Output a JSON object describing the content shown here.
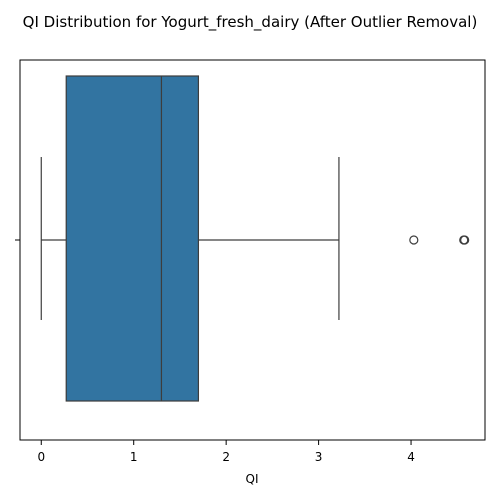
{
  "chart_data": {
    "type": "box",
    "title": "QI Distribution for Yogurt_fresh_dairy (After Outlier Removal)",
    "xlabel": "QI",
    "ylabel": "",
    "orientation": "horizontal",
    "xlim": [
      -0.23,
      4.8
    ],
    "xticks": [
      0,
      1,
      2,
      3,
      4
    ],
    "xtick_labels": [
      "0",
      "1",
      "2",
      "3",
      "4"
    ],
    "grid": false,
    "box": {
      "whisker_low": 0.0,
      "q1": 0.27,
      "median": 1.3,
      "q3": 1.7,
      "whisker_high": 3.22
    },
    "outliers": [
      4.03,
      4.57,
      4.58
    ],
    "colors": {
      "box_fill": "#3274a1",
      "lines": "#3d3d3d"
    }
  }
}
